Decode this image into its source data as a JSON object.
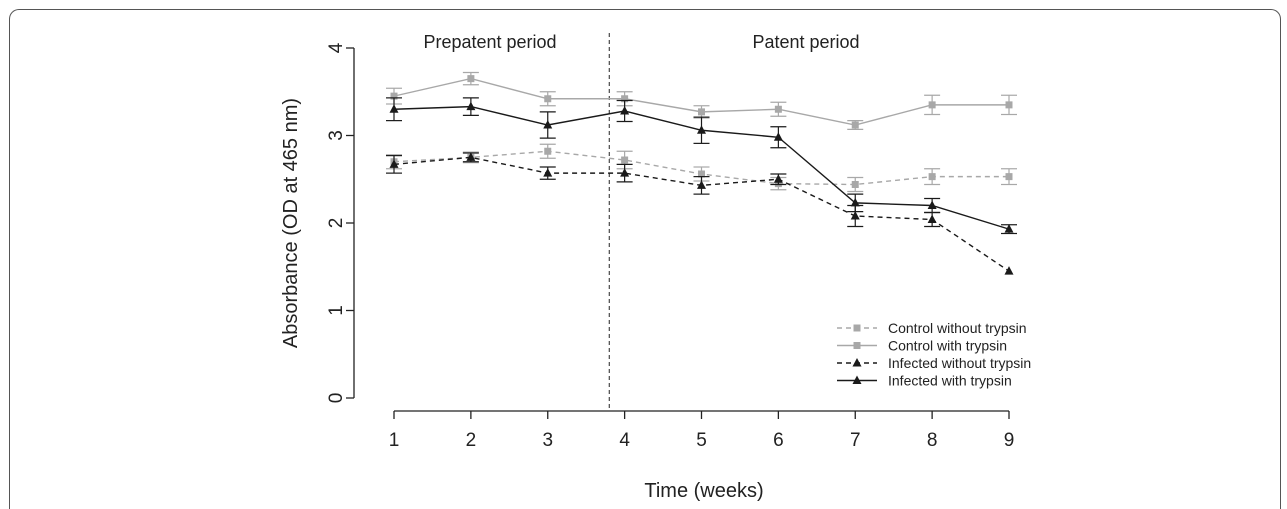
{
  "chart_data": {
    "type": "line",
    "xlabel": "Time (weeks)",
    "ylabel": "Absorbance (OD at 465 nm)",
    "x": [
      1,
      2,
      3,
      4,
      5,
      6,
      7,
      8,
      9
    ],
    "xlim": [
      1,
      9
    ],
    "ylim": [
      0,
      4
    ],
    "x_ticks": [
      "1",
      "2",
      "3",
      "4",
      "5",
      "6",
      "7",
      "8",
      "9"
    ],
    "y_ticks": [
      "0",
      "1",
      "2",
      "3",
      "4"
    ],
    "grid": false,
    "legend_position": "bottom-right",
    "annotations": {
      "divider_x": 3.8,
      "left_label": "Prepatent period",
      "right_label": "Patent period"
    },
    "series": [
      {
        "name": "Control without trypsin",
        "color": "#a8a8a8",
        "dash": true,
        "marker": "square",
        "values": [
          2.7,
          2.75,
          2.82,
          2.72,
          2.56,
          2.45,
          2.44,
          2.53,
          2.53
        ],
        "err": [
          0.08,
          0.06,
          0.08,
          0.1,
          0.08,
          0.07,
          0.08,
          0.09,
          0.09
        ]
      },
      {
        "name": "Control with trypsin",
        "color": "#a8a8a8",
        "dash": false,
        "marker": "square",
        "values": [
          3.45,
          3.65,
          3.42,
          3.42,
          3.27,
          3.3,
          3.12,
          3.35,
          3.35
        ],
        "err": [
          0.09,
          0.07,
          0.08,
          0.08,
          0.07,
          0.08,
          0.05,
          0.11,
          0.11
        ]
      },
      {
        "name": "Infected without trypsin",
        "color": "#1a1a1a",
        "dash": true,
        "marker": "triangle",
        "values": [
          2.67,
          2.75,
          2.57,
          2.57,
          2.43,
          2.5,
          2.08,
          2.04,
          1.45
        ],
        "err": [
          0.1,
          0.05,
          0.07,
          0.1,
          0.1,
          0.06,
          0.12,
          0.08,
          0.0
        ]
      },
      {
        "name": "Infected with trypsin",
        "color": "#1a1a1a",
        "dash": false,
        "marker": "triangle",
        "values": [
          3.3,
          3.33,
          3.12,
          3.28,
          3.06,
          2.98,
          2.23,
          2.2,
          1.93
        ],
        "err": [
          0.13,
          0.1,
          0.15,
          0.12,
          0.15,
          0.12,
          0.1,
          0.08,
          0.05
        ]
      }
    ]
  }
}
